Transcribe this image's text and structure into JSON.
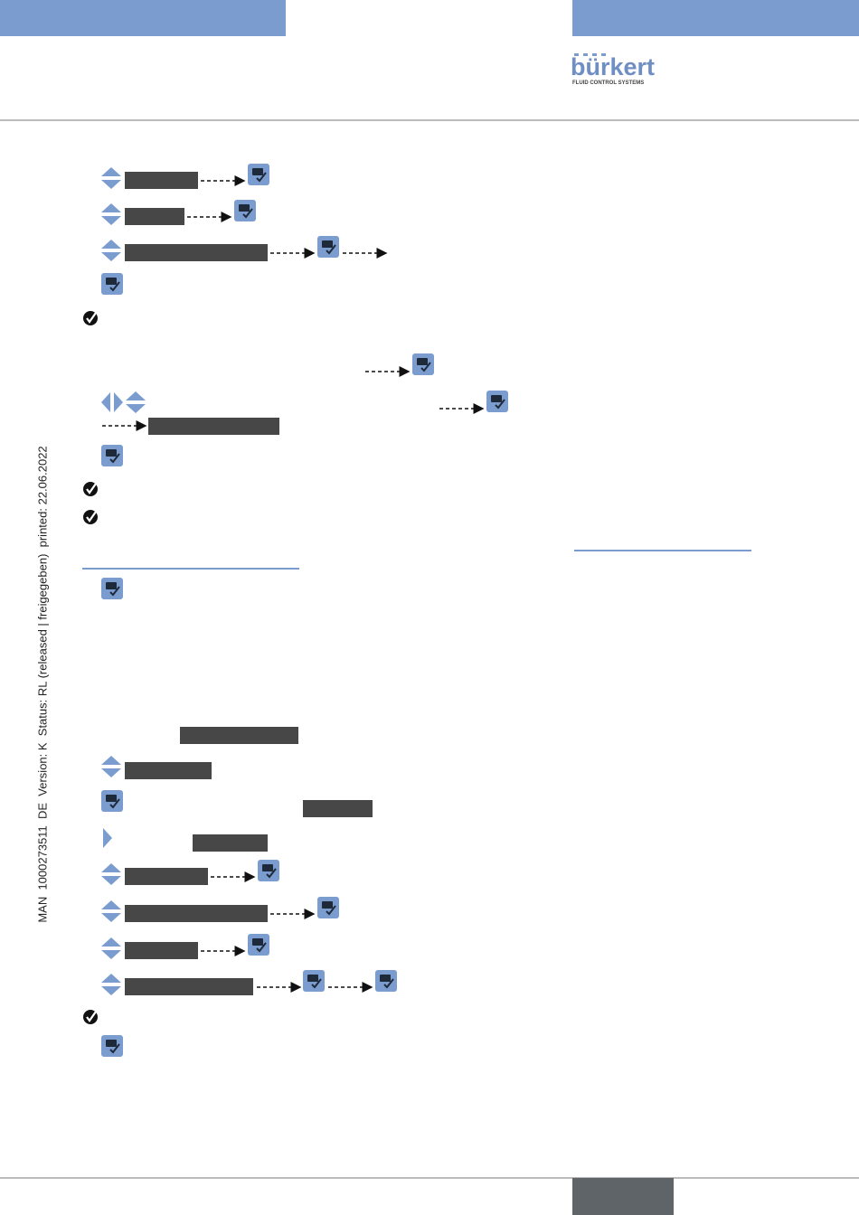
{
  "header": {
    "logo": "bürkert",
    "tagline": "FLUID CONTROL SYSTEMS"
  },
  "side_note": "MAN  1000273511  DE  Version: K  Status: RL (released | freigegeben)  printed: 22.06.2022"
}
